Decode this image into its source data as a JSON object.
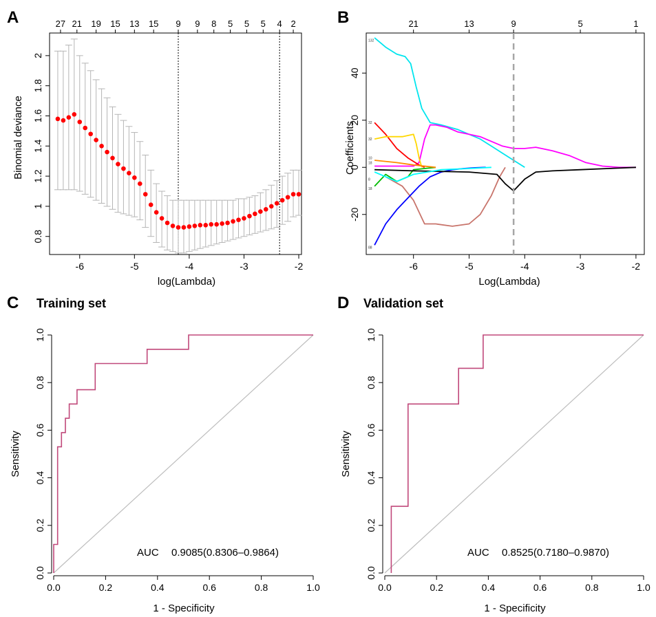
{
  "panels": {
    "a": {
      "label": "A"
    },
    "b": {
      "label": "B"
    },
    "c": {
      "label": "C",
      "title": "Training set"
    },
    "d": {
      "label": "D",
      "title": "Validation set"
    }
  },
  "chart_data": [
    {
      "id": "A",
      "type": "line",
      "xlabel": "log(Lambda)",
      "ylabel": "Binomial deviance",
      "xlim": [
        -6.55,
        -1.95
      ],
      "ylim": [
        0.68,
        2.15
      ],
      "xticks": [
        -6,
        -5,
        -4,
        -3,
        -2
      ],
      "yticks": [
        0.8,
        1.0,
        1.2,
        1.4,
        1.6,
        1.8,
        2.0
      ],
      "top_ticks": {
        "x": [
          -6.35,
          -6.05,
          -5.7,
          -5.35,
          -5.0,
          -4.65,
          -4.2,
          -3.85,
          -3.55,
          -3.25,
          -2.95,
          -2.65,
          -2.35,
          -2.1
        ],
        "labels": [
          "27",
          "21",
          "19",
          "15",
          "13",
          "15",
          "9",
          "9",
          "8",
          "5",
          "5",
          "5",
          "4",
          "2"
        ]
      },
      "vlines": [
        -4.2,
        -2.35
      ],
      "series": [
        {
          "x": [
            -6.4,
            -6.3,
            -6.2,
            -6.1,
            -6.0,
            -5.9,
            -5.8,
            -5.7,
            -5.6,
            -5.5,
            -5.4,
            -5.3,
            -5.2,
            -5.1,
            -5.0,
            -4.9,
            -4.8,
            -4.7,
            -4.6,
            -4.5,
            -4.4,
            -4.3,
            -4.2,
            -4.1,
            -4.0,
            -3.9,
            -3.8,
            -3.7,
            -3.6,
            -3.5,
            -3.4,
            -3.3,
            -3.2,
            -3.1,
            -3.0,
            -2.9,
            -2.8,
            -2.7,
            -2.6,
            -2.5,
            -2.4,
            -2.3,
            -2.2,
            -2.1,
            -2.0
          ],
          "values": [
            1.58,
            1.57,
            1.59,
            1.61,
            1.56,
            1.52,
            1.48,
            1.44,
            1.4,
            1.36,
            1.32,
            1.28,
            1.25,
            1.22,
            1.19,
            1.15,
            1.08,
            1.01,
            0.96,
            0.92,
            0.89,
            0.87,
            0.86,
            0.86,
            0.865,
            0.87,
            0.875,
            0.875,
            0.88,
            0.88,
            0.885,
            0.89,
            0.9,
            0.91,
            0.92,
            0.935,
            0.95,
            0.965,
            0.98,
            1.0,
            1.02,
            1.04,
            1.06,
            1.08,
            1.08
          ],
          "lower": [
            1.11,
            1.11,
            1.11,
            1.11,
            1.1,
            1.08,
            1.06,
            1.04,
            1.02,
            1.0,
            0.98,
            0.96,
            0.95,
            0.94,
            0.93,
            0.91,
            0.86,
            0.8,
            0.76,
            0.73,
            0.71,
            0.7,
            0.69,
            0.69,
            0.7,
            0.71,
            0.72,
            0.73,
            0.74,
            0.75,
            0.76,
            0.77,
            0.78,
            0.79,
            0.8,
            0.81,
            0.82,
            0.83,
            0.84,
            0.85,
            0.86,
            0.88,
            0.9,
            0.93,
            0.94
          ],
          "upper": [
            2.03,
            2.03,
            2.07,
            2.11,
            2.0,
            1.95,
            1.9,
            1.84,
            1.78,
            1.72,
            1.66,
            1.61,
            1.57,
            1.53,
            1.49,
            1.43,
            1.34,
            1.24,
            1.15,
            1.1,
            1.07,
            1.04,
            1.04,
            1.04,
            1.04,
            1.04,
            1.04,
            1.04,
            1.04,
            1.04,
            1.04,
            1.04,
            1.04,
            1.05,
            1.05,
            1.06,
            1.07,
            1.09,
            1.11,
            1.14,
            1.17,
            1.2,
            1.22,
            1.24,
            1.24
          ]
        }
      ]
    },
    {
      "id": "B",
      "type": "line",
      "xlabel": "Log(Lambda)",
      "ylabel": "Coefficients",
      "xlim": [
        -6.85,
        -1.85
      ],
      "ylim": [
        -37,
        57
      ],
      "xticks": [
        -6,
        -5,
        -4,
        -3,
        -2
      ],
      "yticks": [
        -20,
        0,
        20,
        40
      ],
      "top_ticks": {
        "x": [
          -6,
          -5,
          -4.2,
          -3,
          -2
        ],
        "labels": [
          "21",
          "13",
          "9",
          "5",
          "1"
        ]
      },
      "vlines": [
        -4.2
      ],
      "line_labels": [
        {
          "text": "132",
          "y": 54
        },
        {
          "text": "32",
          "y": 19
        },
        {
          "text": "32",
          "y": 12
        },
        {
          "text": "10",
          "y": 4
        },
        {
          "text": "18",
          "y": 2
        },
        {
          "text": "18",
          "y": -9
        },
        {
          "text": "8",
          "y": -5
        },
        {
          "text": "88",
          "y": -34
        }
      ],
      "series": [
        {
          "color": "#00e5ee",
          "x": [
            -6.7,
            -6.5,
            -6.3,
            -6.15,
            -6.05,
            -5.95,
            -5.85,
            -5.7,
            -5.5,
            -5.2,
            -5.0,
            -4.8,
            -4.6,
            -4.4,
            -4.2,
            -4.0
          ],
          "values": [
            55,
            51,
            48,
            47,
            44,
            34,
            25,
            19,
            18,
            16,
            14,
            12,
            9,
            6,
            3,
            0
          ]
        },
        {
          "color": "#ff00ff",
          "x": [
            -6.7,
            -6.2,
            -6.0,
            -5.9,
            -5.8,
            -5.7,
            -5.6,
            -5.4,
            -5.2,
            -5.0,
            -4.8,
            -4.6,
            -4.4,
            -4.2,
            -4.0,
            -3.8,
            -3.5,
            -3.2,
            -2.9,
            -2.6,
            -2.3,
            -2.0
          ],
          "values": [
            0.5,
            0.5,
            0.5,
            2,
            12,
            18,
            18,
            17,
            15,
            14,
            13,
            11,
            9,
            8,
            8,
            8.5,
            7,
            5,
            2,
            0.5,
            0,
            0
          ]
        },
        {
          "color": "#ff0000",
          "x": [
            -6.7,
            -6.5,
            -6.3,
            -6.1,
            -5.9,
            -5.8
          ],
          "values": [
            19,
            14,
            8,
            4,
            1,
            0
          ]
        },
        {
          "color": "#ffd700",
          "x": [
            -6.7,
            -6.5,
            -6.2,
            -6.0,
            -5.95,
            -5.9,
            -5.85
          ],
          "values": [
            12,
            13,
            13,
            14,
            10,
            4,
            0
          ]
        },
        {
          "color": "#c8746b",
          "x": [
            -6.5,
            -6.2,
            -6.0,
            -5.8,
            -5.6,
            -5.3,
            -5.0,
            -4.8,
            -4.6,
            -4.45,
            -4.35
          ],
          "values": [
            -4,
            -8,
            -14,
            -24,
            -24,
            -25,
            -24,
            -20,
            -12,
            -4,
            0
          ]
        },
        {
          "color": "#0000ff",
          "x": [
            -6.7,
            -6.5,
            -6.3,
            -6.1,
            -5.9,
            -5.7,
            -5.5,
            -5.3,
            -5.1,
            -4.9,
            -4.7
          ],
          "values": [
            -33,
            -24,
            -18,
            -13,
            -8,
            -4,
            -2,
            -1,
            -0.5,
            -0.2,
            0
          ]
        },
        {
          "color": "#00bb00",
          "x": [
            -6.7,
            -6.5,
            -6.3,
            -6.1,
            -6.0,
            -5.8,
            -5.6
          ],
          "values": [
            -8,
            -3,
            -6,
            -4,
            -1,
            -0.5,
            0
          ]
        },
        {
          "color": "#000000",
          "x": [
            -6.7,
            -6.0,
            -5.0,
            -4.5,
            -4.35,
            -4.2,
            -4.0,
            -3.8,
            -3.5,
            -3.0,
            -2.5,
            -2.0
          ],
          "values": [
            -1,
            -1.5,
            -2,
            -3,
            -7,
            -10,
            -5,
            -2,
            -1.5,
            -1,
            -0.5,
            0
          ]
        },
        {
          "color": "#00ffff",
          "x": [
            -6.7,
            -6.3,
            -6.0,
            -5.5,
            -5.0,
            -4.6
          ],
          "values": [
            -2,
            -6,
            -3,
            -1,
            -0.5,
            0
          ]
        },
        {
          "color": "#ff8800",
          "x": [
            -6.7,
            -6.3,
            -6.0,
            -5.6
          ],
          "values": [
            3,
            2,
            1,
            0
          ]
        }
      ]
    },
    {
      "id": "C",
      "type": "line",
      "xlabel": "1 - Specificity",
      "ylabel": "Sensitivity",
      "xlim": [
        0,
        1
      ],
      "ylim": [
        0,
        1
      ],
      "xticks": [
        0.0,
        0.2,
        0.4,
        0.6,
        0.8,
        1.0
      ],
      "yticks": [
        0.0,
        0.2,
        0.4,
        0.6,
        0.8,
        1.0
      ],
      "auc_label": "AUC",
      "auc_value": "0.9085(0.8306–0.9864)",
      "series": [
        {
          "x": [
            0.0,
            0.0,
            0.015,
            0.015,
            0.03,
            0.03,
            0.045,
            0.045,
            0.06,
            0.06,
            0.075,
            0.075,
            0.09,
            0.09,
            0.16,
            0.16,
            0.36,
            0.36,
            0.52,
            0.52,
            1.0
          ],
          "values": [
            0.0,
            0.12,
            0.12,
            0.53,
            0.53,
            0.59,
            0.59,
            0.65,
            0.65,
            0.71,
            0.71,
            0.71,
            0.71,
            0.77,
            0.77,
            0.88,
            0.88,
            0.94,
            0.94,
            1.0,
            1.0
          ]
        },
        {
          "x": [
            0,
            1
          ],
          "values": [
            0,
            1
          ]
        }
      ]
    },
    {
      "id": "D",
      "type": "line",
      "xlabel": "1 - Specificity",
      "ylabel": "Sensitivity",
      "xlim": [
        0,
        1
      ],
      "ylim": [
        0,
        1
      ],
      "xticks": [
        0.0,
        0.2,
        0.4,
        0.6,
        0.8,
        1.0
      ],
      "yticks": [
        0.0,
        0.2,
        0.4,
        0.6,
        0.8,
        1.0
      ],
      "auc_label": "AUC",
      "auc_value": "0.8525(0.7180–0.9870)",
      "series": [
        {
          "x": [
            0.025,
            0.025,
            0.09,
            0.09,
            0.285,
            0.285,
            0.38,
            0.38,
            1.0
          ],
          "values": [
            0.0,
            0.28,
            0.28,
            0.71,
            0.71,
            0.86,
            0.86,
            1.0,
            1.0
          ]
        },
        {
          "x": [
            0,
            1
          ],
          "values": [
            0,
            1
          ]
        }
      ]
    }
  ]
}
